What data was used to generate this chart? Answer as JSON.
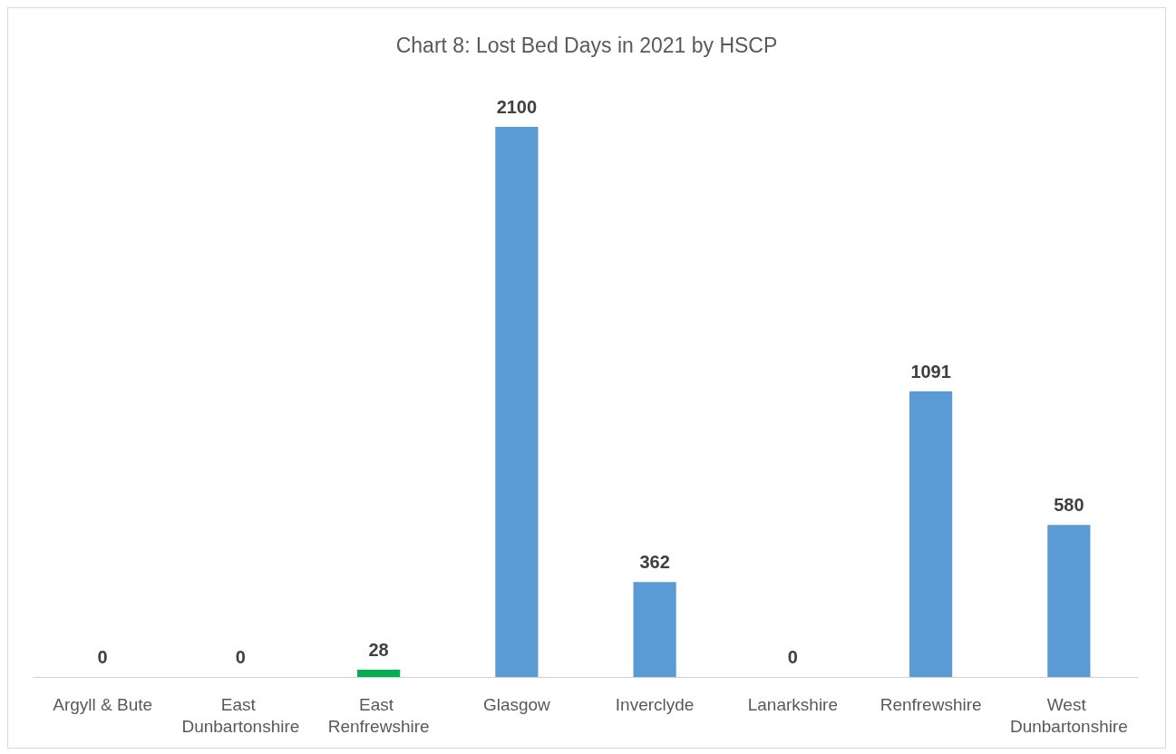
{
  "chart_data": {
    "type": "bar",
    "title": "Chart 8: Lost Bed Days in 2021 by HSCP",
    "categories": [
      "Argyll & Bute",
      "East Dunbartonshire",
      "East Renfrewshire",
      "Glasgow",
      "Inverclyde",
      "Lanarkshire",
      "Renfrewshire",
      "West Dunbartonshire"
    ],
    "values": [
      0,
      0,
      28,
      2100,
      362,
      0,
      1091,
      580
    ],
    "colors": [
      "#5b9bd5",
      "#5b9bd5",
      "#00b050",
      "#5b9bd5",
      "#5b9bd5",
      "#5b9bd5",
      "#5b9bd5",
      "#5b9bd5"
    ],
    "data_labels": true
  }
}
